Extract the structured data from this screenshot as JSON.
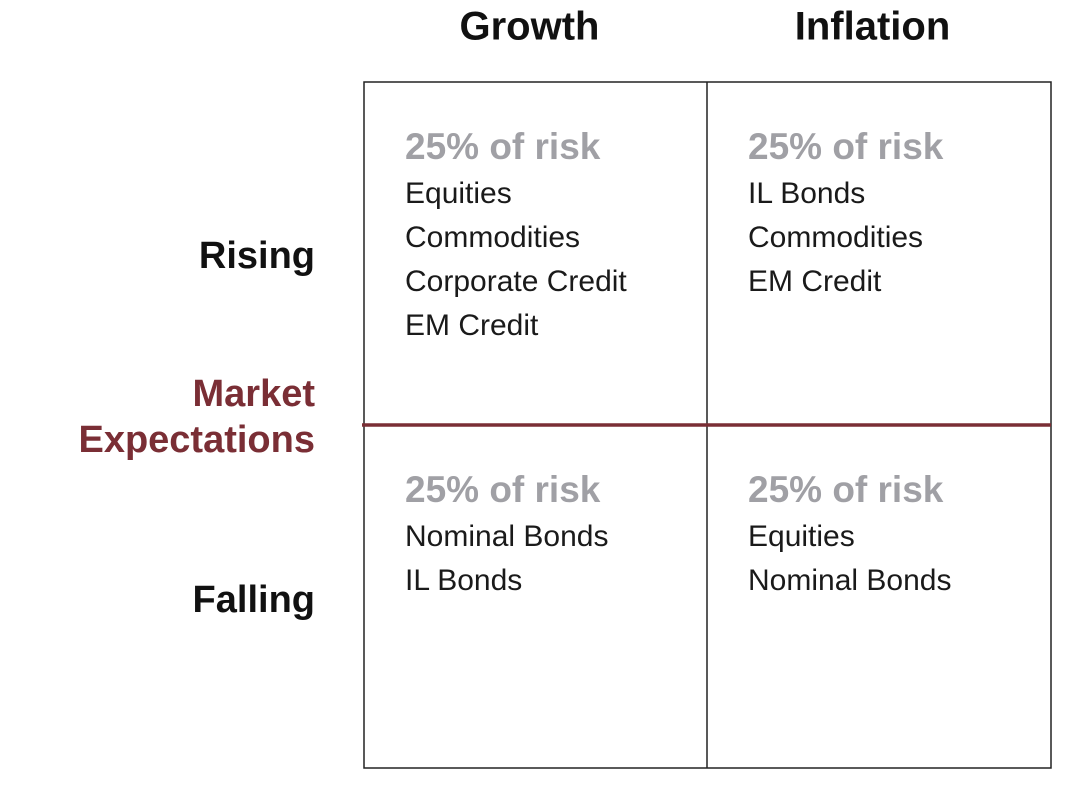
{
  "columns": [
    "Growth",
    "Inflation"
  ],
  "rows": [
    "Rising",
    "Falling"
  ],
  "axis_label": [
    "Market",
    "Expectations"
  ],
  "cells": [
    [
      {
        "heading": "25% of risk",
        "items": [
          "Equities",
          "Commodities",
          "Corporate Credit",
          "EM Credit"
        ]
      },
      {
        "heading": "25% of risk",
        "items": [
          "IL Bonds",
          "Commodities",
          "EM Credit"
        ]
      }
    ],
    [
      {
        "heading": "25% of risk",
        "items": [
          "Nominal Bonds",
          "IL Bonds"
        ]
      },
      {
        "heading": "25% of risk",
        "items": [
          "Equities",
          "Nominal Bonds"
        ]
      }
    ]
  ]
}
